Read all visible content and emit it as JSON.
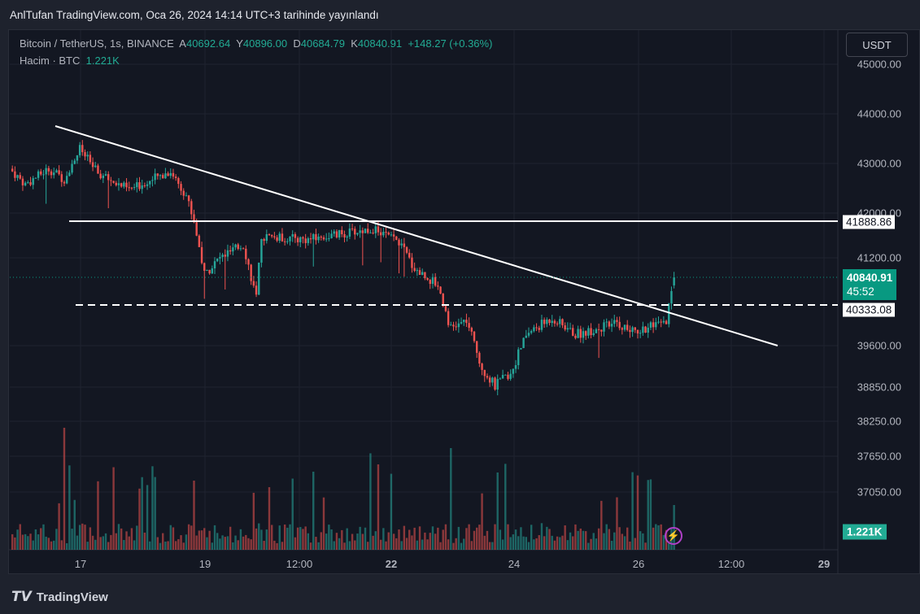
{
  "header": {
    "title": "AnlTufan TradingView.com, Oca 26, 2024 14:14 UTC+3 tarihinde yayınlandı"
  },
  "legend": {
    "symbol": "Bitcoin / TetherUS, 1s, BINANCE",
    "o_label": "A",
    "o": "40692.64",
    "h_label": "Y",
    "h": "40896.00",
    "l_label": "D",
    "l": "40684.79",
    "c_label": "K",
    "c": "40840.91",
    "change": "+148.27 (+0.36%)",
    "volume_label": "Hacim · BTC",
    "volume": "1.221K"
  },
  "currency_button": "USDT",
  "price_ticks": [
    "45000.00",
    "44000.00",
    "43000.00",
    "42000.00",
    "41200.00",
    "39600.00",
    "38850.00",
    "38250.00",
    "37650.00",
    "37050.00"
  ],
  "price_tags": {
    "resistance": "41888.86",
    "current": "40840.91",
    "countdown": "45:52",
    "support": "40333.08",
    "volume": "1.221K"
  },
  "time_labels": [
    "17",
    "19",
    "12:00",
    "22",
    "24",
    "26",
    "12:00",
    "29"
  ],
  "footer": {
    "brand": "TradingView"
  },
  "colors": {
    "up": "#26a69a",
    "down": "#ef5350",
    "bg": "#131722",
    "accent": "#089981"
  },
  "chart_data": {
    "type": "candlestick",
    "interval": "1h",
    "path_points_hours_price": [
      [
        0,
        42900
      ],
      [
        6,
        42600
      ],
      [
        15,
        42900
      ],
      [
        21,
        42700
      ],
      [
        27,
        43300
      ],
      [
        34,
        42800
      ],
      [
        46,
        42500
      ],
      [
        62,
        42850
      ],
      [
        68,
        42400
      ],
      [
        71,
        41900
      ],
      [
        75,
        40900
      ],
      [
        81,
        41200
      ],
      [
        90,
        41450
      ],
      [
        95,
        40450
      ],
      [
        97,
        41600
      ],
      [
        115,
        41550
      ],
      [
        140,
        41750
      ],
      [
        150,
        41500
      ],
      [
        156,
        41000
      ],
      [
        165,
        40700
      ],
      [
        170,
        39900
      ],
      [
        176,
        40050
      ],
      [
        182,
        39200
      ],
      [
        187,
        38870
      ],
      [
        193,
        39100
      ],
      [
        199,
        39800
      ],
      [
        209,
        40100
      ],
      [
        218,
        39800
      ],
      [
        234,
        40000
      ],
      [
        240,
        39850
      ],
      [
        253,
        40000
      ],
      [
        256,
        40841
      ]
    ],
    "trendline": [
      [
        43750,
        "Jan 16"
      ],
      [
        39550,
        "Jan 28"
      ]
    ],
    "horizontal_levels": [
      41888.86,
      40333.08
    ]
  }
}
